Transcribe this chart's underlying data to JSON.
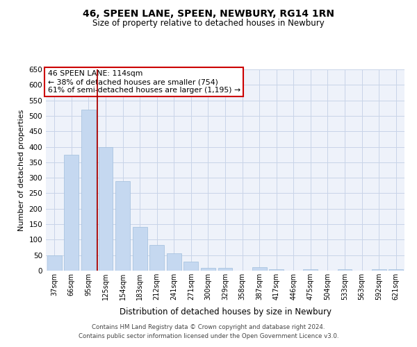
{
  "title": "46, SPEEN LANE, SPEEN, NEWBURY, RG14 1RN",
  "subtitle": "Size of property relative to detached houses in Newbury",
  "xlabel": "Distribution of detached houses by size in Newbury",
  "ylabel": "Number of detached properties",
  "categories": [
    "37sqm",
    "66sqm",
    "95sqm",
    "125sqm",
    "154sqm",
    "183sqm",
    "212sqm",
    "241sqm",
    "271sqm",
    "300sqm",
    "329sqm",
    "358sqm",
    "387sqm",
    "417sqm",
    "446sqm",
    "475sqm",
    "504sqm",
    "533sqm",
    "563sqm",
    "592sqm",
    "621sqm"
  ],
  "values": [
    50,
    375,
    520,
    400,
    290,
    142,
    82,
    55,
    30,
    10,
    10,
    0,
    11,
    4,
    0,
    5,
    0,
    4,
    0,
    4,
    4
  ],
  "bar_color": "#c5d8f0",
  "bar_edge_color": "#a0bedd",
  "grid_color": "#c8d4e8",
  "bg_color": "#eef2fa",
  "vline_x_index": 2.5,
  "vline_color": "#aa0000",
  "annotation_text": "46 SPEEN LANE: 114sqm\n← 38% of detached houses are smaller (754)\n61% of semi-detached houses are larger (1,195) →",
  "annotation_box_color": "#ffffff",
  "annotation_box_edge": "#cc0000",
  "ylim": [
    0,
    650
  ],
  "yticks": [
    0,
    50,
    100,
    150,
    200,
    250,
    300,
    350,
    400,
    450,
    500,
    550,
    600,
    650
  ],
  "footer1": "Contains HM Land Registry data © Crown copyright and database right 2024.",
  "footer2": "Contains public sector information licensed under the Open Government Licence v3.0."
}
